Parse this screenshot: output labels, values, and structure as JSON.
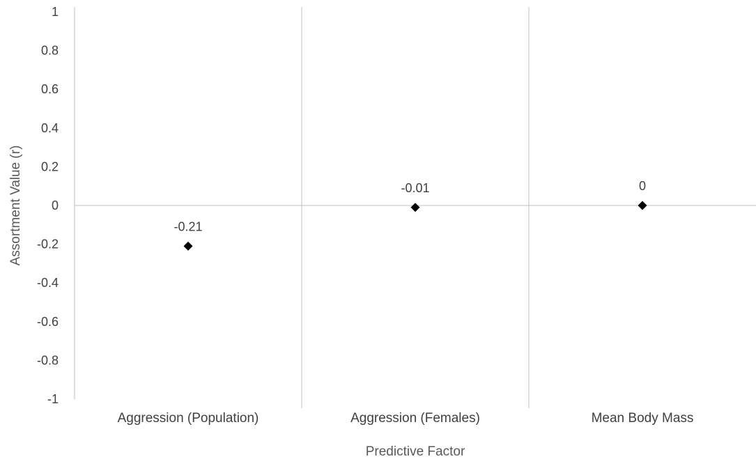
{
  "chart_data": {
    "type": "scatter",
    "title": "",
    "xlabel": "Predictive Factor",
    "ylabel": "Assortment Value (r)",
    "categories": [
      "Aggression (Population)",
      "Aggression (Females)",
      "Mean Body Mass"
    ],
    "values": [
      -0.21,
      -0.01,
      0
    ],
    "data_labels": [
      "-0.21",
      "-0.01",
      "0"
    ],
    "ylim": [
      -1,
      1
    ],
    "y_ticks": [
      "1",
      "0.8",
      "0.6",
      "0.4",
      "0.2",
      "0",
      "-0.2",
      "-0.4",
      "-0.6",
      "-0.8",
      "-1"
    ],
    "y_tick_values": [
      1,
      0.8,
      0.6,
      0.4,
      0.2,
      0,
      -0.2,
      -0.4,
      -0.6,
      -0.8,
      -1
    ],
    "grid": "vertical category separators",
    "legend": "none",
    "marker": "diamond",
    "colors": {
      "marker": "#000000",
      "axis": "#bfbfbf",
      "text": "#404040",
      "title_text": "#595959"
    }
  }
}
